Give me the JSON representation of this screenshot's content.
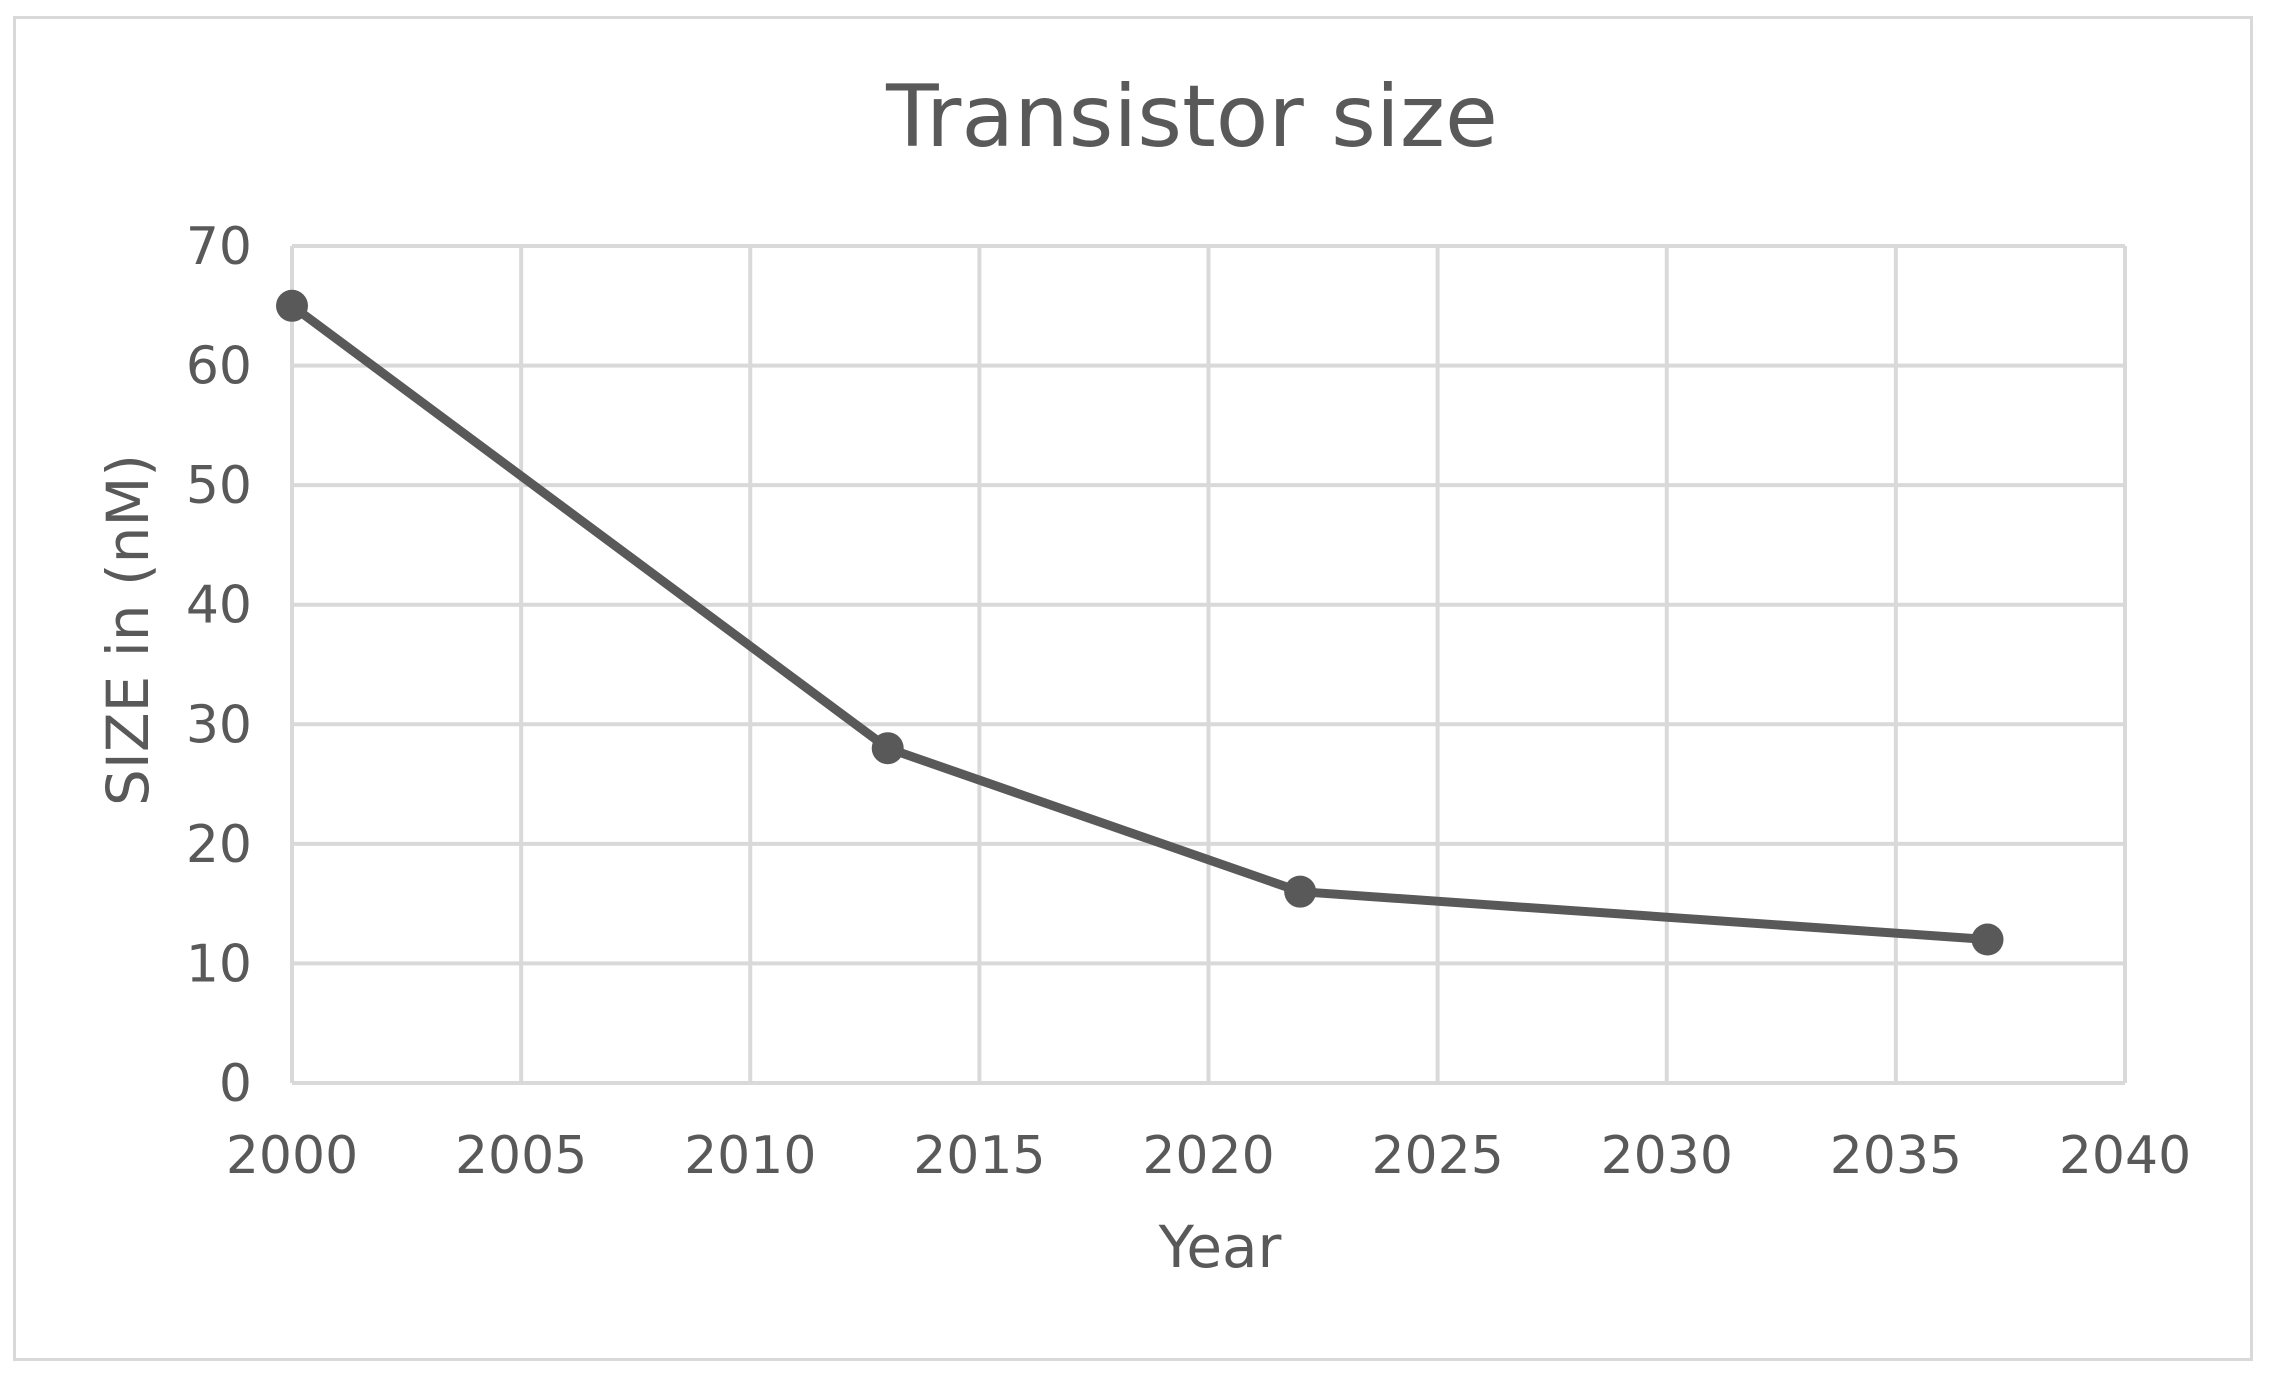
{
  "chart_data": {
    "type": "scatter",
    "mode": "lines+markers",
    "title": "Transistor size",
    "xlabel": "Year",
    "ylabel": "SIZE in (nM)",
    "xlim": [
      2000,
      2040
    ],
    "ylim": [
      0,
      70
    ],
    "xticks": [
      2000,
      2005,
      2010,
      2015,
      2020,
      2025,
      2030,
      2035,
      2040
    ],
    "yticks": [
      0,
      10,
      20,
      30,
      40,
      50,
      60,
      70
    ],
    "grid": true,
    "legend": "none",
    "series": [
      {
        "x": [
          2000,
          2013,
          2022,
          2037
        ],
        "y": [
          65,
          28,
          16,
          12
        ]
      }
    ],
    "colors": {
      "series": "#595959",
      "grid": "#d9d9d9",
      "text": "#595959"
    }
  }
}
